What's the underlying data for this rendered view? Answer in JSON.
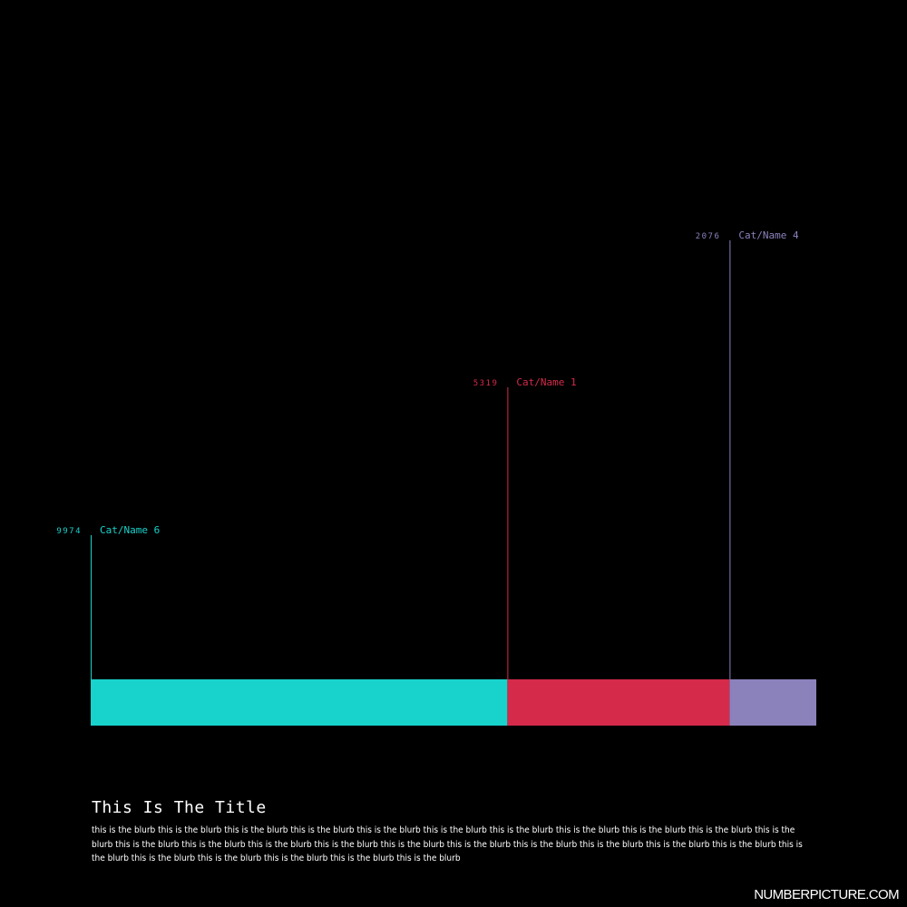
{
  "chart_data": {
    "type": "bar",
    "orientation": "stacked-horizontal",
    "segments": [
      {
        "name": "Cat/Name 6",
        "value": 9974,
        "color": "#17d3cc"
      },
      {
        "name": "Cat/Name 1",
        "value": 5319,
        "color": "#d52a4a"
      },
      {
        "name": "Cat/Name 4",
        "value": 2076,
        "color": "#8b82bc"
      }
    ],
    "title": "This Is The Title",
    "blurb": "this is the blurb this is the blurb this is the blurb this is the blurb this is the blurb this is the blurb this is the blurb this is the blurb this is the blurb this is the blurb this is the blurb this is the blurb this is the blurb this is the blurb this is the blurb this is the blurb this is the blurb this is the blurb this is the blurb this is the blurb this is the blurb this is the blurb this is the blurb this is the blurb this is the blurb this is the blurb this is the blurb"
  },
  "footer": {
    "brand": "NUMBERPICTURE.COM"
  }
}
